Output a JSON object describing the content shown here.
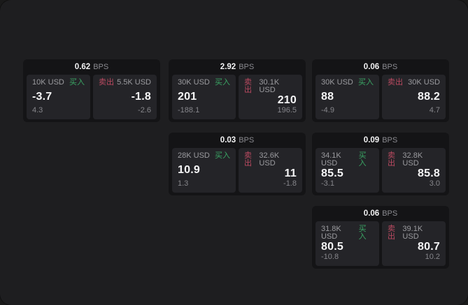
{
  "labels": {
    "bps_suffix": "BPS",
    "buy": "买入",
    "sell": "卖出"
  },
  "colors": {
    "page_bg": "#1e1e20",
    "card_bg": "#141416",
    "subpanel_bg": "#242428",
    "buy_green": "#3aa564",
    "sell_red": "#bb4a61",
    "value_text": "#f5f5f6",
    "muted_text": "#9b9b9f"
  },
  "cards": [
    {
      "bps": "0.62",
      "buy": {
        "size": "10K USD",
        "value": "-3.7",
        "delta": "4.3"
      },
      "sell": {
        "size": "5.5K USD",
        "value": "-1.8",
        "delta": "-2.6"
      }
    },
    {
      "bps": "2.92",
      "buy": {
        "size": "30K USD",
        "value": "201",
        "delta": "-188.1"
      },
      "sell": {
        "size": "30.1K USD",
        "value": "210",
        "delta": "196.5"
      }
    },
    {
      "bps": "0.06",
      "buy": {
        "size": "30K USD",
        "value": "88",
        "delta": "-4.9"
      },
      "sell": {
        "size": "30K USD",
        "value": "88.2",
        "delta": "4.7"
      }
    },
    {
      "bps": "0.03",
      "buy": {
        "size": "28K USD",
        "value": "10.9",
        "delta": "1.3"
      },
      "sell": {
        "size": "32.6K USD",
        "value": "11",
        "delta": "-1.8"
      }
    },
    {
      "bps": "0.09",
      "buy": {
        "size": "34.1K USD",
        "value": "85.5",
        "delta": "-3.1"
      },
      "sell": {
        "size": "32.8K USD",
        "value": "85.8",
        "delta": "3.0"
      }
    },
    {
      "bps": "0.06",
      "buy": {
        "size": "31.8K USD",
        "value": "80.5",
        "delta": "-10.8"
      },
      "sell": {
        "size": "39.1K USD",
        "value": "80.7",
        "delta": "10.2"
      }
    }
  ]
}
